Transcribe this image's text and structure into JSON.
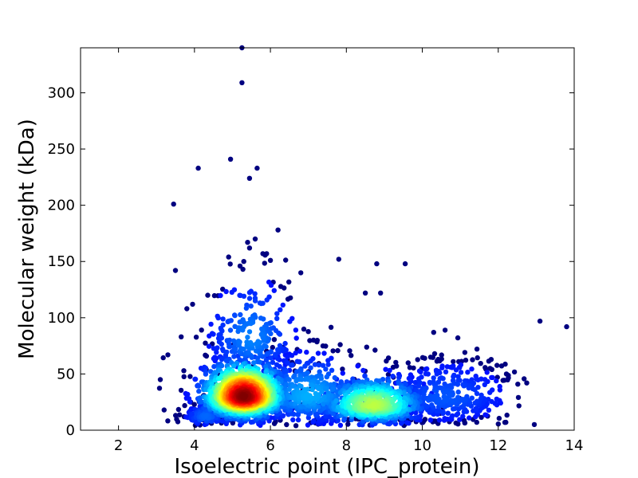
{
  "chart_data": {
    "type": "scatter",
    "xlabel": "Isoelectric point (IPC_protein)",
    "ylabel": "Molecular weight (kDa)",
    "xlim": [
      1,
      14
    ],
    "ylim": [
      0,
      340
    ],
    "xticks": [
      2,
      4,
      6,
      8,
      10,
      12,
      14
    ],
    "yticks": [
      0,
      50,
      100,
      150,
      200,
      250,
      300
    ],
    "grid": false,
    "legend": "none",
    "colormap": "jet (point density)",
    "colors": {
      "low_density": "#00008f",
      "high_density": "#800000"
    },
    "clusters": [
      {
        "center_pI": 5.3,
        "center_mw": 30,
        "spread_pI": 0.55,
        "spread_mw": 12,
        "count": 1400,
        "peak_density": 1.0
      },
      {
        "center_pI": 5.5,
        "center_mw": 80,
        "spread_pI": 0.6,
        "spread_mw": 22,
        "count": 260,
        "peak_density": 0.15
      },
      {
        "center_pI": 8.7,
        "center_mw": 22,
        "spread_pI": 0.7,
        "spread_mw": 10,
        "count": 650,
        "peak_density": 0.5
      },
      {
        "center_pI": 7.0,
        "center_mw": 30,
        "spread_pI": 0.8,
        "spread_mw": 15,
        "count": 450,
        "peak_density": 0.2
      },
      {
        "center_pI": 10.6,
        "center_mw": 28,
        "spread_pI": 0.9,
        "spread_mw": 14,
        "count": 400,
        "peak_density": 0.1
      },
      {
        "center_pI": 4.3,
        "center_mw": 12,
        "spread_pI": 0.3,
        "spread_mw": 5,
        "count": 120,
        "peak_density": 0.12
      }
    ],
    "notable_points": [
      {
        "x": 5.25,
        "y": 340
      },
      {
        "x": 5.25,
        "y": 309
      },
      {
        "x": 4.95,
        "y": 241
      },
      {
        "x": 4.1,
        "y": 233
      },
      {
        "x": 5.65,
        "y": 233
      },
      {
        "x": 5.45,
        "y": 224
      },
      {
        "x": 3.45,
        "y": 201
      },
      {
        "x": 6.2,
        "y": 178
      },
      {
        "x": 5.6,
        "y": 170
      },
      {
        "x": 5.4,
        "y": 167
      },
      {
        "x": 5.45,
        "y": 162
      },
      {
        "x": 5.8,
        "y": 157
      },
      {
        "x": 5.9,
        "y": 157
      },
      {
        "x": 4.9,
        "y": 154
      },
      {
        "x": 7.8,
        "y": 152
      },
      {
        "x": 6.0,
        "y": 151
      },
      {
        "x": 8.8,
        "y": 148
      },
      {
        "x": 9.55,
        "y": 148
      },
      {
        "x": 5.3,
        "y": 150
      },
      {
        "x": 5.2,
        "y": 146
      },
      {
        "x": 3.5,
        "y": 142
      },
      {
        "x": 6.8,
        "y": 140
      },
      {
        "x": 13.1,
        "y": 97
      },
      {
        "x": 13.8,
        "y": 92
      },
      {
        "x": 12.75,
        "y": 42
      },
      {
        "x": 12.95,
        "y": 5
      },
      {
        "x": 12.2,
        "y": 7
      },
      {
        "x": 3.1,
        "y": 45
      },
      {
        "x": 3.3,
        "y": 67
      },
      {
        "x": 3.2,
        "y": 18
      },
      {
        "x": 3.65,
        "y": 83
      },
      {
        "x": 3.8,
        "y": 108
      },
      {
        "x": 3.95,
        "y": 112
      },
      {
        "x": 4.35,
        "y": 120
      },
      {
        "x": 10.6,
        "y": 89
      },
      {
        "x": 10.3,
        "y": 87
      },
      {
        "x": 8.9,
        "y": 122
      },
      {
        "x": 8.5,
        "y": 122
      }
    ]
  }
}
